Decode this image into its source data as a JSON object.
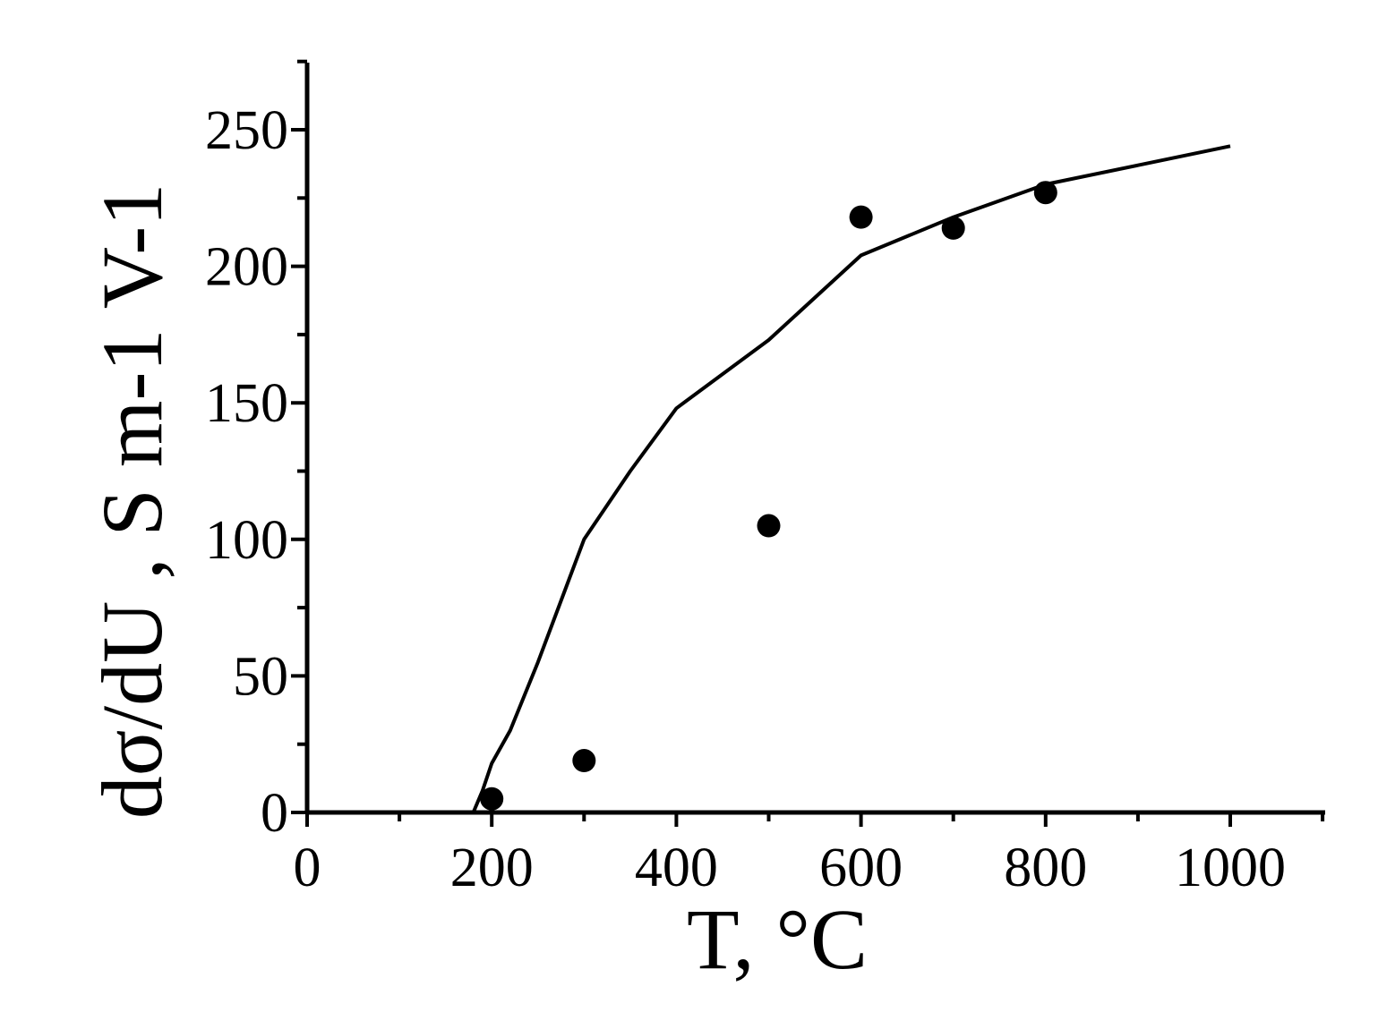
{
  "chart_data": {
    "type": "scatter",
    "xlabel": "T, °C",
    "ylabel": "dσ/dU , S m-1 V-1",
    "xlim": [
      0,
      1100
    ],
    "ylim": [
      0,
      275
    ],
    "x_ticks": [
      0,
      200,
      400,
      600,
      800,
      1000
    ],
    "y_ticks": [
      0,
      50,
      100,
      150,
      200,
      250
    ],
    "grid": false,
    "series": [
      {
        "type": "scatter",
        "marker": "filled-circle",
        "color": "#000000",
        "x": [
          200,
          300,
          500,
          600,
          700,
          800
        ],
        "y": [
          5,
          19,
          105,
          218,
          214,
          227
        ]
      },
      {
        "type": "line",
        "color": "#000000",
        "x": [
          180,
          190,
          200,
          220,
          250,
          300,
          350,
          400,
          500,
          600,
          700,
          800,
          900,
          1000
        ],
        "y": [
          0,
          8,
          18,
          30,
          55,
          100,
          125,
          148,
          173,
          204,
          218,
          230,
          237,
          244
        ]
      }
    ]
  }
}
